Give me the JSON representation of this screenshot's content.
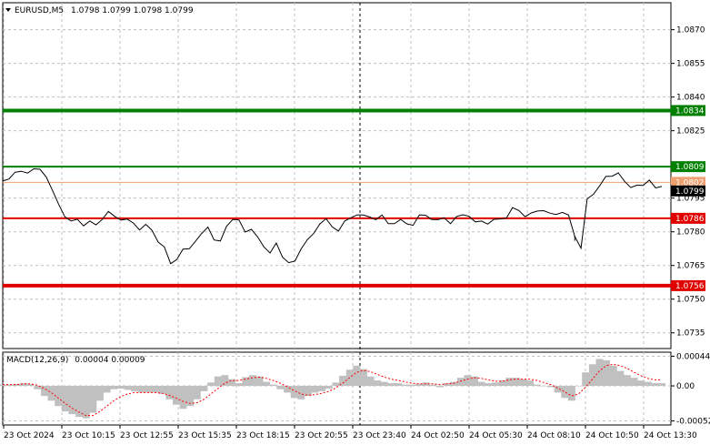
{
  "header": {
    "symbol_label": "EURUSD,M5",
    "ohlc": "1.0798 1.0799 1.0798 1.0799"
  },
  "macd_header": {
    "label": "MACD(12,26,9)",
    "values": "0.00004 0.00009"
  },
  "colors": {
    "price_line": "#000000",
    "grid": "#c0c0c0",
    "green_level": "#008000",
    "red_level": "#e00000",
    "bid_line": "#f0a070",
    "macd_hist": "#c0c0c0",
    "macd_signal": "#ff0000",
    "current_price_bg": "#000000"
  },
  "chart_data": [
    {
      "type": "line",
      "name": "price",
      "y_axis_ticks": [
        "1.0870",
        "1.0855",
        "1.0840",
        "1.0825",
        "1.0795",
        "1.0780",
        "1.0765",
        "1.0750",
        "1.0735"
      ],
      "y_axis_tick_values": [
        1.087,
        1.0855,
        1.084,
        1.0825,
        1.0795,
        1.078,
        1.0765,
        1.075,
        1.0735
      ],
      "ylim": [
        1.0728,
        1.0882
      ],
      "x_axis_ticks": [
        "23 Oct 2024",
        "23 Oct 10:15",
        "23 Oct 12:55",
        "23 Oct 15:35",
        "23 Oct 18:15",
        "23 Oct 20:55",
        "23 Oct 23:40",
        "24 Oct 02:50",
        "24 Oct 05:30",
        "24 Oct 08:10",
        "24 Oct 10:50",
        "24 Oct 13:30"
      ],
      "levels": [
        {
          "value": 1.0834,
          "label": "1.0834",
          "kind": "green",
          "weight": "thick"
        },
        {
          "value": 1.0809,
          "label": "1.0809",
          "kind": "green",
          "weight": "thin"
        },
        {
          "value": 1.0786,
          "label": "1.0786",
          "kind": "red",
          "weight": "thin"
        },
        {
          "value": 1.0756,
          "label": "1.0756",
          "kind": "red",
          "weight": "thick"
        }
      ],
      "bid_line": {
        "value": 1.0802,
        "label": "1.0802"
      },
      "current_price": {
        "value": 1.0799,
        "label": "1.0799"
      },
      "grid": true,
      "values": [
        1.0802,
        1.0804,
        1.0806,
        1.0807,
        1.0806,
        1.0808,
        1.0808,
        1.0804,
        1.0797,
        1.0791,
        1.0786,
        1.0784,
        1.0784,
        1.0782,
        1.0784,
        1.0783,
        1.0786,
        1.0789,
        1.0787,
        1.0785,
        1.0786,
        1.0784,
        1.0781,
        1.0782,
        1.0779,
        1.0774,
        1.0772,
        1.0764,
        1.0766,
        1.0771,
        1.0773,
        1.0776,
        1.0779,
        1.0782,
        1.0776,
        1.0776,
        1.0783,
        1.0786,
        1.0784,
        1.0779,
        1.078,
        1.0777,
        1.0772,
        1.0769,
        1.0774,
        1.0769,
        1.0766,
        1.0767,
        1.0772,
        1.0776,
        1.0779,
        1.0783,
        1.0785,
        1.0781,
        1.0779,
        1.0784,
        1.0785,
        1.0786,
        1.0786,
        1.0785,
        1.0785,
        1.0787,
        1.0784,
        1.0783,
        1.0785,
        1.0783,
        1.0783,
        1.0786,
        1.0786,
        1.0784,
        1.0784,
        1.0785,
        1.0782,
        1.0785,
        1.0786,
        1.0787,
        1.0784,
        1.0785,
        1.0783,
        1.0785,
        1.0786,
        1.0786,
        1.0789,
        1.0788,
        1.0785,
        1.0787,
        1.0788,
        1.0788,
        1.0787,
        1.0787,
        1.0789,
        1.0787,
        1.0778,
        1.0773,
        1.0795,
        1.0797,
        1.0801,
        1.0803,
        1.0803,
        1.0805,
        1.0801,
        1.0799,
        1.0799,
        1.0799,
        1.0803,
        1.08,
        1.08
      ],
      "extra_points": {
        "dip_low": 1.0776
      }
    },
    {
      "type": "bar",
      "name": "MACD",
      "y_axis_ticks": [
        "0.00044",
        "0.00",
        "-0.00052"
      ],
      "y_axis_tick_values": [
        0.00044,
        0.0,
        -0.00052
      ],
      "ylim": [
        -0.00058,
        0.0005
      ],
      "series": [
        {
          "name": "MACD",
          "kind": "histogram",
          "values": [
            2e-05,
            2e-05,
            3e-05,
            4e-05,
            3e-05,
            -5e-05,
            -0.00015,
            -0.00022,
            -0.0003,
            -0.00038,
            -0.00042,
            -0.00046,
            -0.00048,
            -0.0004,
            -0.00022,
            -0.0001,
            -5e-05,
            -4e-05,
            -6e-05,
            -8e-05,
            -0.0001,
            -0.0001,
            -0.0001,
            -0.00012,
            -0.0002,
            -0.00028,
            -0.00034,
            -0.0003,
            -0.0002,
            -8e-05,
            5e-05,
            0.00014,
            0.00016,
            0.0001,
            4e-05,
            0.00013,
            0.00016,
            0.00014,
            6e-05,
            2e-05,
            -5e-05,
            -0.0001,
            -0.00018,
            -0.0002,
            -0.00015,
            -0.0001,
            -8e-05,
            -4e-05,
            5e-05,
            0.00015,
            0.00024,
            0.0003,
            0.00025,
            0.00014,
            8e-05,
            6e-05,
            4e-05,
            4e-05,
            2e-05,
            2e-05,
            3e-05,
            5e-05,
            2e-05,
            -2e-05,
            4e-05,
            6e-05,
            0.00012,
            0.00016,
            0.00014,
            6e-05,
            4e-05,
            5e-05,
            8e-05,
            0.00012,
            0.00012,
            0.0001,
            8e-05,
            2e-05,
            0.0,
            -2e-05,
            -0.0001,
            -0.00018,
            -0.00022,
            0.0,
            0.0002,
            0.00032,
            0.0004,
            0.00038,
            0.0003,
            0.00022,
            0.00016,
            0.00012,
            8e-05,
            6e-05,
            4e-05,
            4e-05
          ]
        },
        {
          "name": "Signal",
          "kind": "dotted-line",
          "values": [
            2e-05,
            2e-05,
            2e-05,
            3e-05,
            3e-05,
            1e-05,
            -4e-05,
            -0.0001,
            -0.00018,
            -0.00026,
            -0.00033,
            -0.00039,
            -0.00044,
            -0.00044,
            -0.00038,
            -0.0003,
            -0.00022,
            -0.00016,
            -0.00012,
            -0.0001,
            -0.0001,
            -0.0001,
            -0.0001,
            -0.00011,
            -0.00014,
            -0.00018,
            -0.00023,
            -0.00026,
            -0.00025,
            -0.0002,
            -0.00012,
            -4e-05,
            4e-05,
            8e-05,
            8e-05,
            0.0001,
            0.00012,
            0.00013,
            0.00011,
            8e-05,
            4e-05,
            -1e-05,
            -7e-05,
            -0.00012,
            -0.00014,
            -0.00013,
            -0.00011,
            -8e-05,
            -3e-05,
            4e-05,
            0.00012,
            0.0002,
            0.00023,
            0.00021,
            0.00017,
            0.00013,
            0.0001,
            8e-05,
            6e-05,
            4e-05,
            3e-05,
            3e-05,
            3e-05,
            2e-05,
            3e-05,
            4e-05,
            7e-05,
            0.0001,
            0.00012,
            0.00011,
            9e-05,
            7e-05,
            7e-05,
            9e-05,
            0.0001,
            0.0001,
            0.0001,
            8e-05,
            5e-05,
            2e-05,
            -3e-05,
            -9e-05,
            -0.00015,
            -0.00012,
            -2e-05,
            0.0001,
            0.00022,
            0.0003,
            0.00032,
            0.0003,
            0.00026,
            0.0002,
            0.00015,
            0.00011,
            9e-05,
            9e-05
          ]
        }
      ]
    }
  ]
}
